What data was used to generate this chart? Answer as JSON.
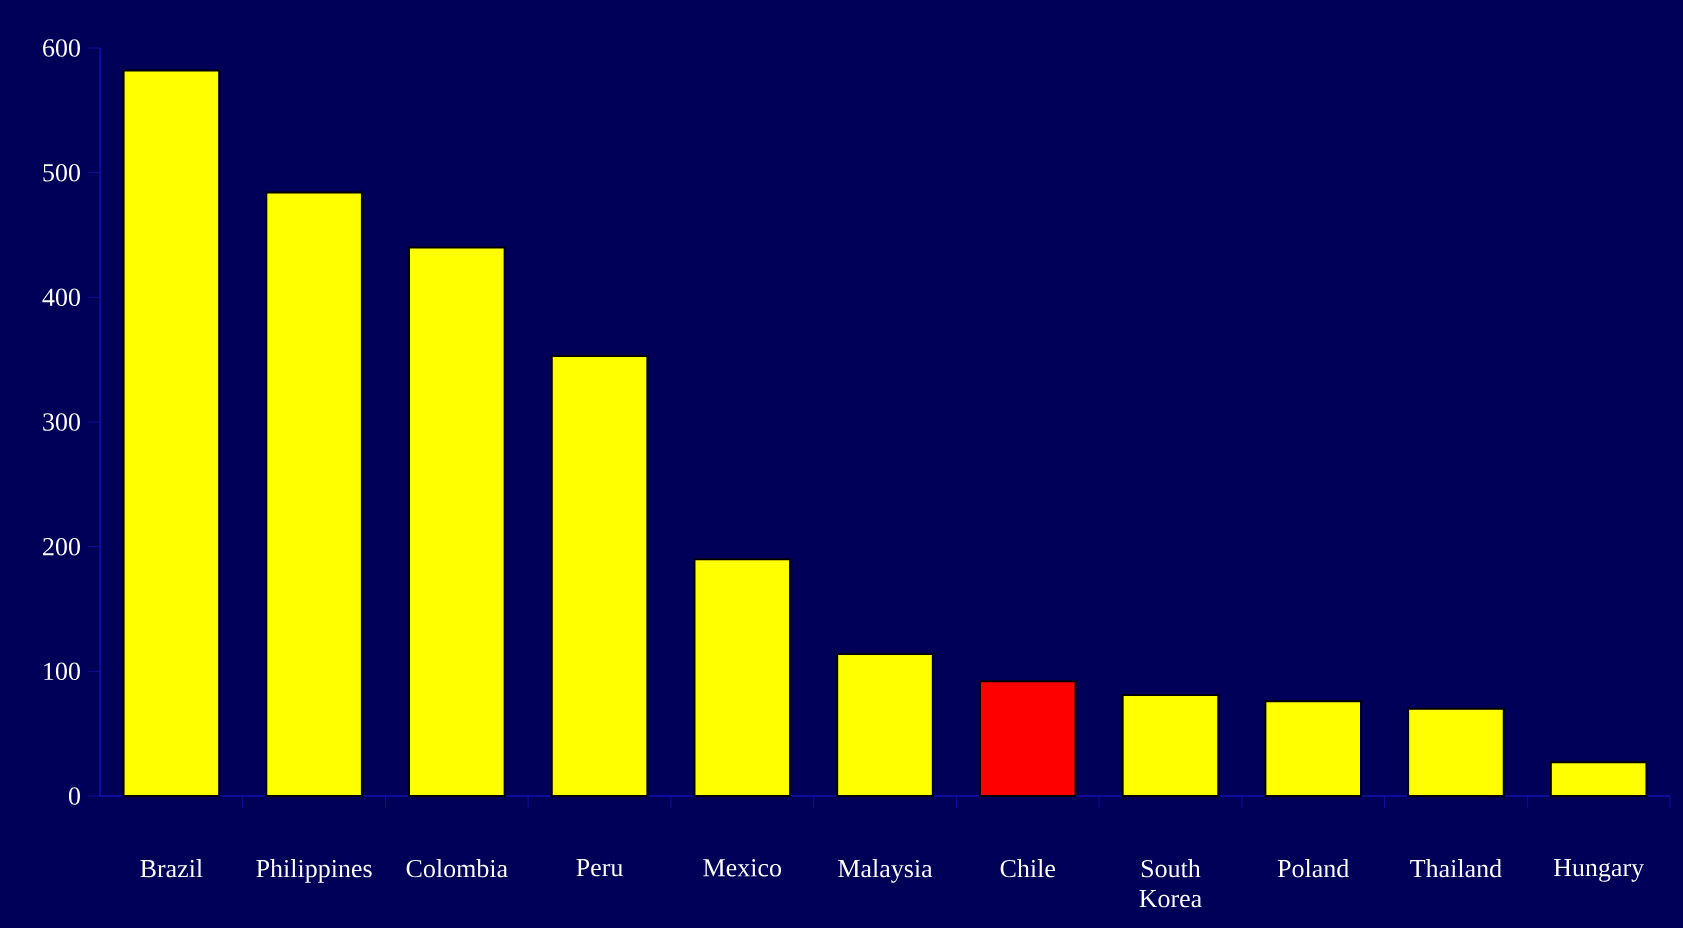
{
  "chart_data": {
    "type": "bar",
    "categories": [
      "Brazil",
      "Philippines",
      "Colombia",
      "Peru",
      "Mexico",
      "Malaysia",
      "Chile",
      "South Korea",
      "Poland",
      "Thailand",
      "Hungary"
    ],
    "values": [
      582,
      484,
      440,
      353,
      190,
      114,
      92,
      81,
      76,
      70,
      27
    ],
    "colors": [
      "#ffff00",
      "#ffff00",
      "#ffff00",
      "#ffff00",
      "#ffff00",
      "#ffff00",
      "#ff0000",
      "#ffff00",
      "#ffff00",
      "#ffff00",
      "#ffff00"
    ],
    "ylim": [
      0,
      600
    ],
    "yticks": [
      0,
      100,
      200,
      300,
      400,
      500,
      600
    ],
    "grid": false
  }
}
